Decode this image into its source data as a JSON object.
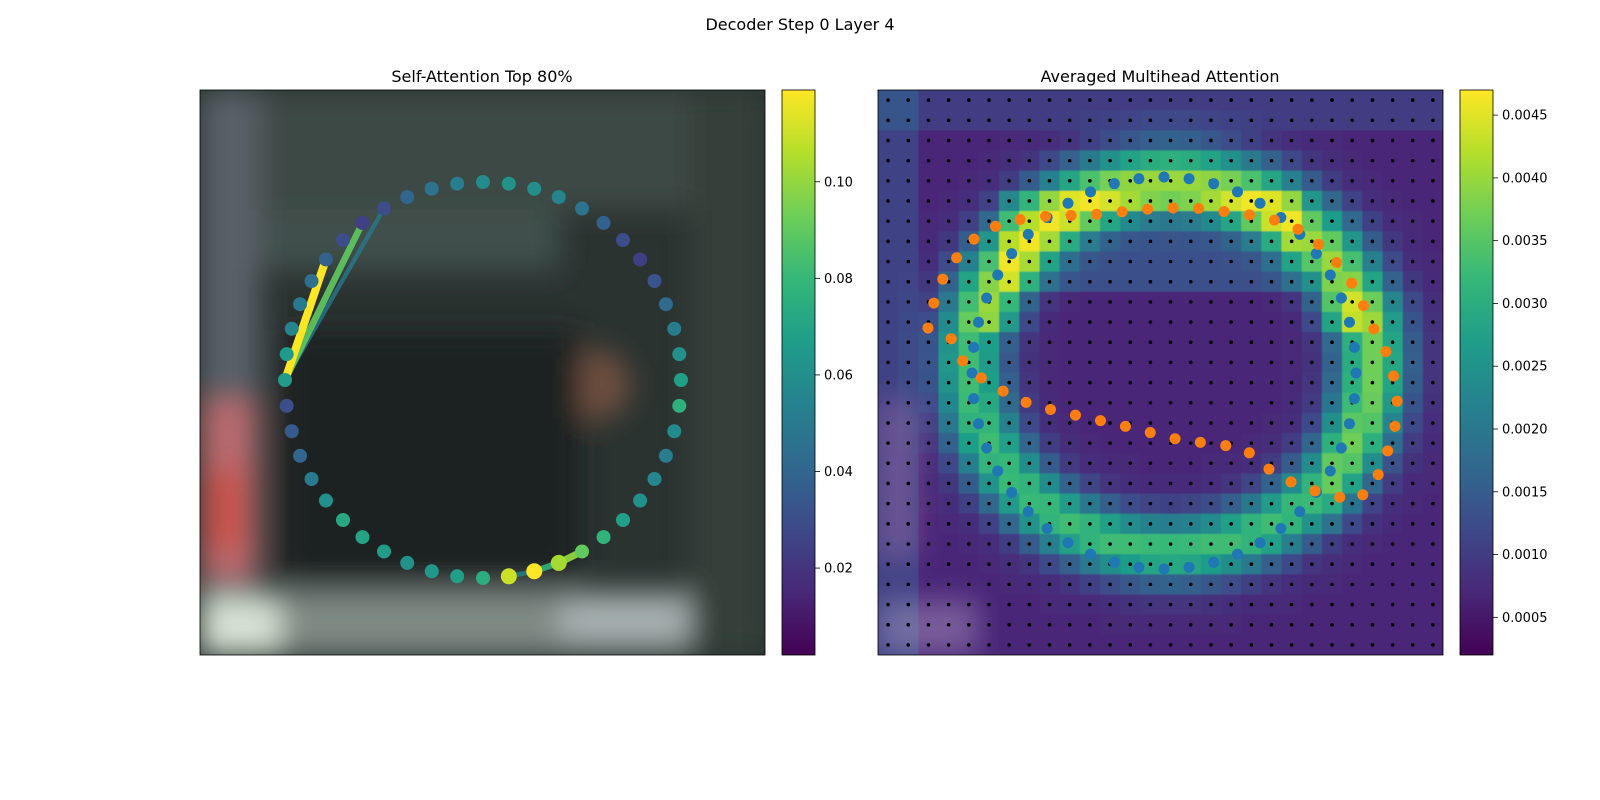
{
  "figure_title": "Decoder Step 0 Layer 4",
  "colors": {
    "viridis": [
      "#440154",
      "#482878",
      "#3e4989",
      "#31688e",
      "#26828e",
      "#1f9e89",
      "#35b779",
      "#6ece58",
      "#b5de2b",
      "#fde725"
    ],
    "points_query": "#1f77b4",
    "points_pred": "#ff7f0e",
    "grid_dots": "#000000",
    "image_base": "#2b3331"
  },
  "chart_data": [
    {
      "type": "scatter",
      "title": "Self-Attention Top 80%",
      "background": "blurred photo (street scene)",
      "colorbar": {
        "min": 0.002,
        "max": 0.119,
        "ticks": [
          0.02,
          0.04,
          0.06,
          0.08,
          0.1
        ],
        "tick_labels": [
          "0.02",
          "0.04",
          "0.06",
          "0.08",
          "0.10"
        ],
        "colormap": "viridis"
      },
      "point_count": 48,
      "point_values": [
        0.066,
        0.065,
        0.055,
        0.05,
        0.045,
        0.038,
        0.03,
        0.025,
        0.03,
        0.04,
        0.047,
        0.052,
        0.058,
        0.062,
        0.06,
        0.055,
        0.047,
        0.038,
        0.03,
        0.024,
        0.032,
        0.042,
        0.051,
        0.061,
        0.068,
        0.076,
        0.058,
        0.052,
        0.056,
        0.061,
        0.068,
        0.078,
        0.09,
        0.103,
        0.119,
        0.11,
        0.075,
        0.068,
        0.064,
        0.062,
        0.066,
        0.07,
        0.072,
        0.061,
        0.05,
        0.04,
        0.035,
        0.03
      ],
      "highlight_index": 0,
      "edges": [
        {
          "from": 0,
          "to": 5,
          "value": 0.119
        },
        {
          "from": 0,
          "to": 7,
          "value": 0.09
        },
        {
          "from": 0,
          "to": 8,
          "value": 0.05
        },
        {
          "from": 32,
          "to": 33,
          "value": 0.1
        },
        {
          "from": 33,
          "to": 34,
          "value": 0.08
        },
        {
          "from": 34,
          "to": 35,
          "value": 0.055
        }
      ]
    },
    {
      "type": "heatmap",
      "title": "Averaged Multihead Attention",
      "background": "attention heatmap overlaid on blurred photo",
      "colorbar": {
        "min": 0.0002,
        "max": 0.0047,
        "ticks": [
          0.0005,
          0.001,
          0.0015,
          0.002,
          0.0025,
          0.003,
          0.0035,
          0.004,
          0.0045
        ],
        "tick_labels": [
          "0.0005",
          "0.0010",
          "0.0015",
          "0.0020",
          "0.0025",
          "0.0030",
          "0.0035",
          "0.0040",
          "0.0045"
        ],
        "colormap": "viridis"
      },
      "grid": {
        "rows": 28,
        "cols": 28
      },
      "series": [
        {
          "color": "#1f77b4",
          "shape": "circle of points",
          "count": 48
        },
        {
          "color": "#ff7f0e",
          "shape": "predicted contour",
          "count": 48
        }
      ]
    }
  ]
}
